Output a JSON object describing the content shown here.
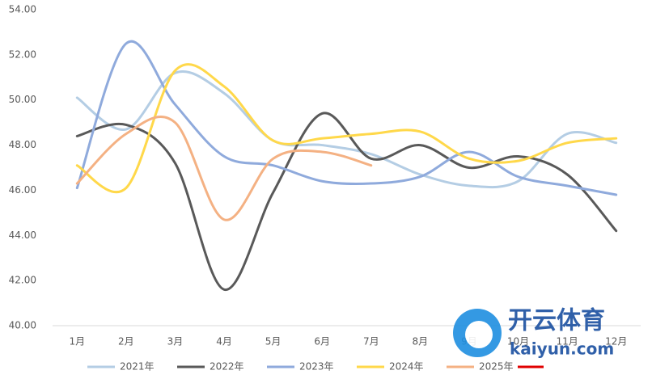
{
  "chart_data": {
    "type": "line",
    "categories": [
      "1月",
      "2月",
      "3月",
      "4月",
      "5月",
      "6月",
      "7月",
      "8月",
      "9月",
      "10月",
      "11月",
      "12月"
    ],
    "series": [
      {
        "name": "2021年",
        "color": "#b4cde4",
        "values": [
          50.1,
          48.7,
          51.2,
          50.3,
          48.2,
          48.0,
          47.6,
          46.7,
          46.2,
          46.4,
          48.5,
          48.1
        ]
      },
      {
        "name": "2022年",
        "color": "#595959",
        "values": [
          48.4,
          48.9,
          47.2,
          41.6,
          45.9,
          49.4,
          47.4,
          48.0,
          47.0,
          47.5,
          46.7,
          44.2
        ]
      },
      {
        "name": "2023年",
        "color": "#8faadc",
        "values": [
          46.1,
          52.5,
          49.8,
          47.5,
          47.1,
          46.4,
          46.3,
          46.6,
          47.7,
          46.6,
          46.2,
          45.8
        ]
      },
      {
        "name": "2024年",
        "color": "#ffd84a",
        "values": [
          47.1,
          46.1,
          51.3,
          50.6,
          48.2,
          48.3,
          48.5,
          48.6,
          47.4,
          47.3,
          48.1,
          48.3
        ]
      },
      {
        "name": "2025年",
        "color": "#f4b183",
        "values": [
          46.3,
          48.5,
          49.0,
          44.7,
          47.4,
          47.7,
          47.1,
          null,
          null,
          null,
          null,
          null
        ]
      }
    ],
    "ylim": [
      40,
      54
    ],
    "yticks": [
      {
        "value": 40,
        "label": "40.00"
      },
      {
        "value": 42,
        "label": "42.00"
      },
      {
        "value": 44,
        "label": "44.00"
      },
      {
        "value": 46,
        "label": "46.00"
      },
      {
        "value": 48,
        "label": "48.00"
      },
      {
        "value": 50,
        "label": "50.00"
      },
      {
        "value": 52,
        "label": "52.00"
      },
      {
        "value": 54,
        "label": "54.00"
      }
    ],
    "grid": false,
    "legend": "bottom"
  },
  "watermark": {
    "brand": "开云体育",
    "site": "kaiyun.com"
  }
}
